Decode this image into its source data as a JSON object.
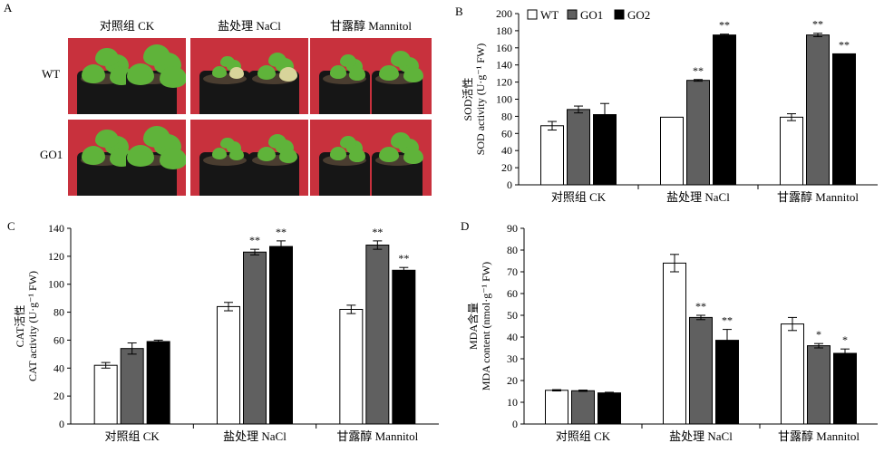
{
  "panel_a": {
    "letter": "A",
    "columns": [
      "对照组 CK",
      "盐处理 NaCl",
      "甘露醇 Mannitol"
    ],
    "rows": [
      "WT",
      "GO1"
    ]
  },
  "legend": [
    "WT",
    "GO1",
    "GO2"
  ],
  "colors": {
    "WT": "#ffffff",
    "GO1": "#606060",
    "GO2": "#000000",
    "photo_bg": "#c8313d",
    "leaf": "#5fb33a"
  },
  "chart_data": [
    {
      "id": "B",
      "letter": "B",
      "type": "bar",
      "categories": [
        "对照组 CK",
        "盐处理 NaCl",
        "甘露醇 Mannitol"
      ],
      "ylabel_cn": "SOD活性",
      "ylabel_en": "SOD activity (U·g⁻¹ FW)",
      "ylim": [
        0,
        200
      ],
      "yticks": [
        0,
        20,
        40,
        60,
        80,
        100,
        120,
        140,
        160,
        180,
        200
      ],
      "legend": "top-left",
      "series": [
        {
          "name": "WT",
          "values": [
            69,
            79,
            79
          ],
          "errors": [
            5,
            0,
            4
          ],
          "marks": [
            "",
            "",
            ""
          ]
        },
        {
          "name": "GO1",
          "values": [
            88,
            122,
            175
          ],
          "errors": [
            4,
            1,
            2
          ],
          "marks": [
            "",
            "**",
            "**"
          ]
        },
        {
          "name": "GO2",
          "values": [
            82,
            175,
            153
          ],
          "errors": [
            13,
            1,
            0
          ],
          "marks": [
            "",
            "**",
            "**"
          ]
        }
      ]
    },
    {
      "id": "C",
      "letter": "C",
      "type": "bar",
      "categories": [
        "对照组 CK",
        "盐处理 NaCl",
        "甘露醇 Mannitol"
      ],
      "ylabel_cn": "CAT活性",
      "ylabel_en": "CAT activity (U·g⁻¹ FW)",
      "ylim": [
        0,
        140
      ],
      "yticks": [
        0,
        20,
        40,
        60,
        80,
        100,
        120,
        140
      ],
      "series": [
        {
          "name": "WT",
          "values": [
            42,
            84,
            82
          ],
          "errors": [
            2,
            3,
            3
          ],
          "marks": [
            "",
            "",
            ""
          ]
        },
        {
          "name": "GO1",
          "values": [
            54,
            123,
            128
          ],
          "errors": [
            4,
            2,
            3
          ],
          "marks": [
            "",
            "**",
            "**"
          ]
        },
        {
          "name": "GO2",
          "values": [
            59,
            127,
            110
          ],
          "errors": [
            1,
            4,
            2
          ],
          "marks": [
            "",
            "**",
            "**"
          ]
        }
      ]
    },
    {
      "id": "D",
      "letter": "D",
      "type": "bar",
      "categories": [
        "对照组 CK",
        "盐处理 NaCl",
        "甘露醇 Mannitol"
      ],
      "ylabel_cn": "MDA含量",
      "ylabel_en": "MDA content (nmol·g⁻¹ FW)",
      "ylim": [
        0,
        90
      ],
      "yticks": [
        0,
        10,
        20,
        30,
        40,
        50,
        60,
        70,
        80,
        90
      ],
      "series": [
        {
          "name": "WT",
          "values": [
            15.5,
            74,
            46
          ],
          "errors": [
            0.3,
            4,
            3
          ],
          "marks": [
            "",
            "",
            ""
          ]
        },
        {
          "name": "GO1",
          "values": [
            15.3,
            49,
            36
          ],
          "errors": [
            0.3,
            1,
            1
          ],
          "marks": [
            "",
            "**",
            "*"
          ]
        },
        {
          "name": "GO2",
          "values": [
            14.3,
            38.5,
            32.5
          ],
          "errors": [
            0.3,
            5,
            2
          ],
          "marks": [
            "",
            "**",
            "*"
          ]
        }
      ]
    }
  ]
}
